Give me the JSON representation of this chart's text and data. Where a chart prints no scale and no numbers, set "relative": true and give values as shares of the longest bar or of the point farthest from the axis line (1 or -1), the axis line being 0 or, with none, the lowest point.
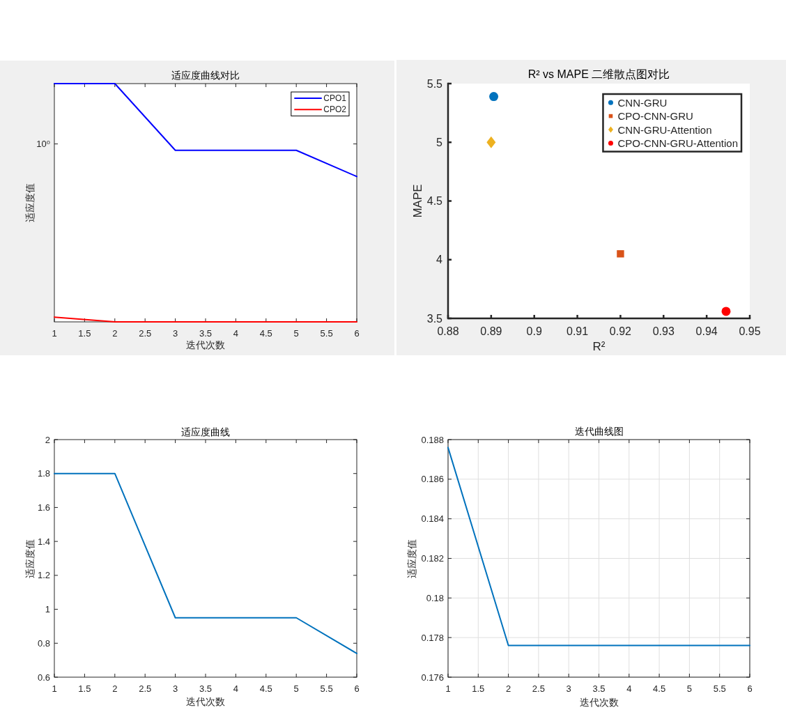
{
  "chart_data": [
    {
      "type": "line",
      "title": "适应度曲线对比",
      "xlabel": "迭代次数",
      "ylabel": "适应度值",
      "x": [
        1,
        2,
        3,
        4,
        5,
        6
      ],
      "xlim": [
        1,
        6
      ],
      "xticks": [
        1,
        1.5,
        2,
        2.5,
        3,
        3.5,
        4,
        4.5,
        5,
        5.5,
        6
      ],
      "relative": true,
      "annotations": [
        "10⁰"
      ],
      "legend": "top right",
      "series": [
        {
          "name": "CPO1",
          "color": "#0000ff",
          "values": [
            1,
            1,
            0.72,
            0.72,
            0.72,
            0.61
          ]
        },
        {
          "name": "CPO2",
          "color": "#ff0000",
          "values": [
            0.02,
            0,
            0,
            0,
            0,
            0
          ]
        }
      ]
    },
    {
      "type": "scatter",
      "title": "R² vs MAPE 二维散点图对比",
      "xlabel": "R²",
      "ylabel": "MAPE",
      "xlim": [
        0.88,
        0.95
      ],
      "xticks": [
        0.88,
        0.89,
        0.9,
        0.91,
        0.92,
        0.93,
        0.94,
        0.95
      ],
      "ylim": [
        3.5,
        5.5
      ],
      "yticks": [
        3.5,
        4,
        4.5,
        5,
        5.5
      ],
      "legend": "top right",
      "series": [
        {
          "name": "CNN-GRU",
          "color": "#0072bd",
          "marker": "circle",
          "x": [
            0.8906
          ],
          "values": [
            5.39
          ]
        },
        {
          "name": "CPO-CNN-GRU",
          "color": "#d95319",
          "marker": "square",
          "x": [
            0.92
          ],
          "values": [
            4.05
          ]
        },
        {
          "name": "CNN-GRU-Attention",
          "color": "#edb120",
          "marker": "diamond",
          "x": [
            0.89
          ],
          "values": [
            5.0
          ]
        },
        {
          "name": "CPO-CNN-GRU-Attention",
          "color": "#ff0000",
          "marker": "circle",
          "x": [
            0.9445
          ],
          "values": [
            3.56
          ]
        }
      ]
    },
    {
      "type": "line",
      "title": "适应度曲线",
      "xlabel": "迭代次数",
      "ylabel": "适应度值",
      "x": [
        1,
        2,
        3,
        4,
        5,
        6
      ],
      "xlim": [
        1,
        6
      ],
      "xticks": [
        1,
        1.5,
        2,
        2.5,
        3,
        3.5,
        4,
        4.5,
        5,
        5.5,
        6
      ],
      "ylim": [
        0.6,
        2
      ],
      "yticks": [
        0.6,
        0.8,
        1,
        1.2,
        1.4,
        1.6,
        1.8,
        2
      ],
      "series": [
        {
          "color": "#0072bd",
          "values": [
            1.8,
            1.8,
            0.95,
            0.95,
            0.95,
            0.74
          ]
        }
      ]
    },
    {
      "type": "line",
      "title": "迭代曲线图",
      "xlabel": "迭代次数",
      "ylabel": "适应度值",
      "x": [
        1,
        2,
        3,
        4,
        5,
        6
      ],
      "xlim": [
        1,
        6
      ],
      "xticks": [
        1,
        1.5,
        2,
        2.5,
        3,
        3.5,
        4,
        4.5,
        5,
        5.5,
        6
      ],
      "ylim": [
        0.176,
        0.188
      ],
      "yticks": [
        0.176,
        0.178,
        0.18,
        0.182,
        0.184,
        0.186,
        0.188
      ],
      "grid": true,
      "series": [
        {
          "color": "#0072bd",
          "values": [
            0.1876,
            0.1776,
            0.1776,
            0.1776,
            0.1776,
            0.1776
          ]
        }
      ]
    }
  ]
}
